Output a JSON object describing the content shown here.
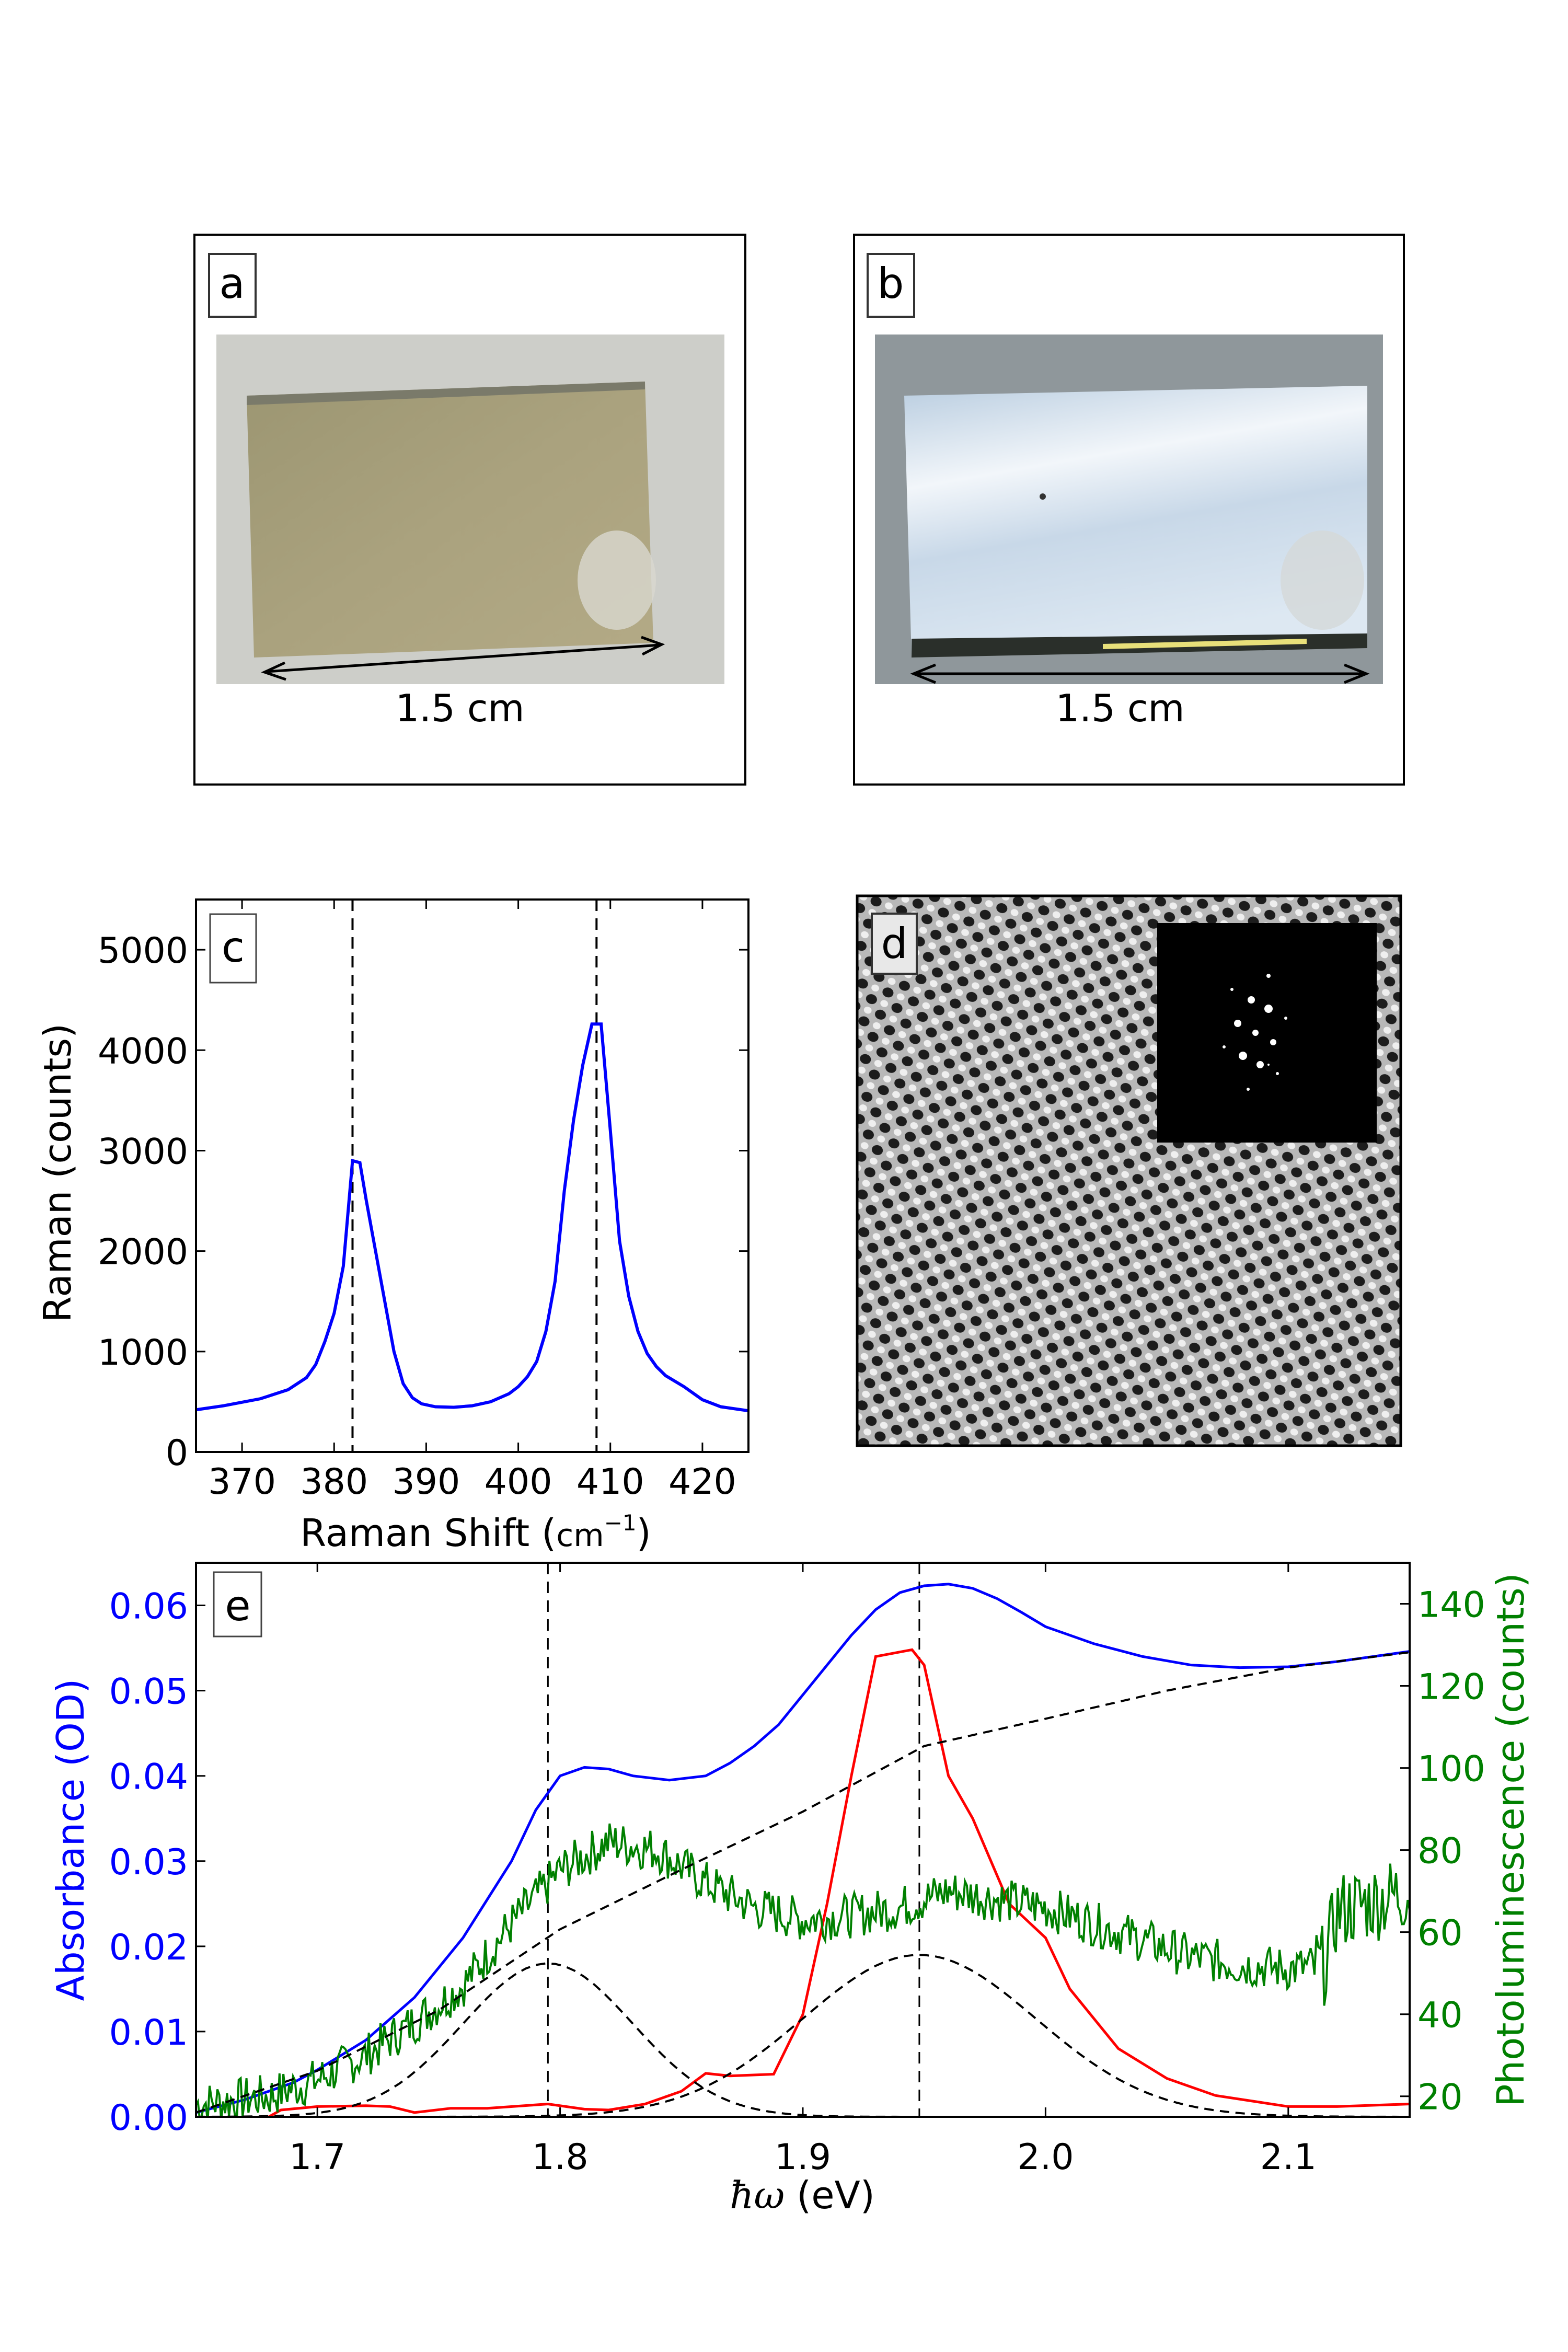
{
  "panels": {
    "a": {
      "letter": "a",
      "scale_label": "1.5 cm"
    },
    "b": {
      "letter": "b",
      "scale_label": "1.5 cm"
    },
    "d": {
      "letter": "d"
    },
    "e": {
      "letter": "e"
    }
  },
  "chart_data": [
    {
      "panel": "c",
      "type": "line",
      "xlabel": "Raman Shift",
      "xlabel_unit": "cm",
      "xlabel_unit_exp": "−1",
      "ylabel": "Raman (counts)",
      "xlim": [
        365,
        425
      ],
      "ylim": [
        0,
        5500
      ],
      "xticks": [
        370,
        380,
        390,
        400,
        410,
        420
      ],
      "yticks": [
        0,
        1000,
        2000,
        3000,
        4000,
        5000
      ],
      "grid": false,
      "vlines": [
        382,
        408.5
      ],
      "series": [
        {
          "color": "#0000ff",
          "x": [
            365,
            368,
            372,
            375,
            377,
            378,
            379,
            380,
            381,
            382,
            382.8,
            383.5,
            384.5,
            385.5,
            386.5,
            387.5,
            388.5,
            389.5,
            391,
            393,
            395,
            397,
            399,
            400,
            401,
            402,
            403,
            404,
            405,
            406,
            407,
            408,
            409,
            410,
            411,
            412,
            413,
            414,
            415,
            416,
            418,
            420,
            422,
            425
          ],
          "y": [
            420,
            460,
            530,
            620,
            740,
            870,
            1100,
            1380,
            1850,
            2900,
            2880,
            2500,
            2000,
            1500,
            1000,
            680,
            540,
            480,
            450,
            445,
            460,
            500,
            580,
            650,
            750,
            900,
            1200,
            1700,
            2600,
            3300,
            3850,
            4260,
            4260,
            3200,
            2100,
            1550,
            1200,
            980,
            850,
            760,
            650,
            520,
            450,
            410
          ]
        }
      ]
    },
    {
      "panel": "e",
      "type": "line",
      "xlabel": "ħω",
      "xlabel_unit": "(eV)",
      "ylabel": "Absorbance (OD)",
      "ylabel_right": "Photoluminescence (counts)",
      "xlim": [
        1.65,
        2.15
      ],
      "ylim": [
        0,
        0.065
      ],
      "ylim_right": [
        15,
        150
      ],
      "xticks": [
        "1.7",
        "1.8",
        "1.9",
        "2.0",
        "2.1"
      ],
      "yticks": [
        "0.00",
        "0.01",
        "0.02",
        "0.03",
        "0.04",
        "0.05",
        "0.06"
      ],
      "yticks_right": [
        "20",
        "40",
        "60",
        "80",
        "100",
        "120",
        "140"
      ],
      "grid": false,
      "vlines": [
        1.795,
        1.948
      ],
      "colors": {
        "absorbance": "#0000ff",
        "red_curve": "#ff0000",
        "pl": "#008000",
        "fits": "#000000"
      },
      "series": [
        {
          "id": "absorbance",
          "axis": "left",
          "color": "#0000ff",
          "style": "solid",
          "x": [
            1.65,
            1.67,
            1.69,
            1.7,
            1.72,
            1.74,
            1.76,
            1.78,
            1.79,
            1.8,
            1.81,
            1.82,
            1.83,
            1.845,
            1.86,
            1.87,
            1.88,
            1.89,
            1.9,
            1.91,
            1.92,
            1.93,
            1.94,
            1.95,
            1.96,
            1.97,
            1.98,
            1.99,
            2.0,
            2.02,
            2.04,
            2.06,
            2.08,
            2.1,
            2.12,
            2.15
          ],
          "y": [
            0.0005,
            0.002,
            0.004,
            0.0055,
            0.009,
            0.014,
            0.021,
            0.03,
            0.036,
            0.04,
            0.041,
            0.0408,
            0.04,
            0.0395,
            0.04,
            0.0415,
            0.0435,
            0.046,
            0.0495,
            0.053,
            0.0565,
            0.0595,
            0.0615,
            0.0623,
            0.0625,
            0.062,
            0.0608,
            0.0592,
            0.0575,
            0.0555,
            0.054,
            0.053,
            0.0527,
            0.0528,
            0.0534,
            0.0546
          ]
        },
        {
          "id": "red_curve",
          "axis": "left",
          "color": "#ff0000",
          "style": "solid",
          "x": [
            1.68,
            1.685,
            1.7,
            1.72,
            1.73,
            1.74,
            1.755,
            1.77,
            1.795,
            1.81,
            1.82,
            1.835,
            1.85,
            1.86,
            1.87,
            1.888,
            1.9,
            1.91,
            1.92,
            1.93,
            1.945,
            1.95,
            1.96,
            1.97,
            1.985,
            2.0,
            2.01,
            2.03,
            2.05,
            2.07,
            2.1,
            2.12,
            2.15
          ],
          "y": [
            0.0,
            0.0008,
            0.0012,
            0.0013,
            0.0012,
            0.0005,
            0.001,
            0.001,
            0.0015,
            0.0009,
            0.0008,
            0.0015,
            0.003,
            0.0051,
            0.0048,
            0.005,
            0.012,
            0.025,
            0.04,
            0.054,
            0.0548,
            0.053,
            0.04,
            0.035,
            0.025,
            0.021,
            0.015,
            0.008,
            0.0045,
            0.0025,
            0.0012,
            0.0012,
            0.0015
          ]
        },
        {
          "id": "pl",
          "axis": "right",
          "color": "#008000",
          "style": "noisy",
          "x": [
            1.65,
            1.68,
            1.7,
            1.72,
            1.74,
            1.76,
            1.78,
            1.8,
            1.82,
            1.84,
            1.86,
            1.88,
            1.9,
            1.92,
            1.94,
            1.96,
            1.98,
            2.0,
            2.02,
            2.04,
            2.06,
            2.08,
            2.1,
            2.115,
            2.12,
            2.15
          ],
          "y": [
            18,
            20,
            24,
            30,
            38,
            47,
            62,
            75,
            82,
            80,
            72,
            66,
            63,
            64,
            66,
            70,
            68,
            66,
            62,
            58,
            54,
            52,
            51,
            52,
            65,
            70
          ]
        },
        {
          "id": "background_fit",
          "axis": "left",
          "color": "#000000",
          "style": "dashed",
          "x": [
            1.65,
            1.7,
            1.75,
            1.8,
            1.85,
            1.9,
            1.95,
            2.0,
            2.05,
            2.1,
            2.15
          ],
          "y": [
            0.0005,
            0.0054,
            0.0125,
            0.022,
            0.029,
            0.0358,
            0.0435,
            0.0467,
            0.05,
            0.0527,
            0.0545
          ]
        },
        {
          "id": "peak_fit_1",
          "axis": "left",
          "color": "#000000",
          "style": "dashed",
          "gaussian": {
            "center": 1.795,
            "amplitude": 0.018,
            "sigma": 0.035
          }
        },
        {
          "id": "peak_fit_2",
          "axis": "left",
          "color": "#000000",
          "style": "dashed",
          "gaussian": {
            "center": 1.948,
            "amplitude": 0.019,
            "sigma": 0.048
          }
        }
      ]
    }
  ]
}
